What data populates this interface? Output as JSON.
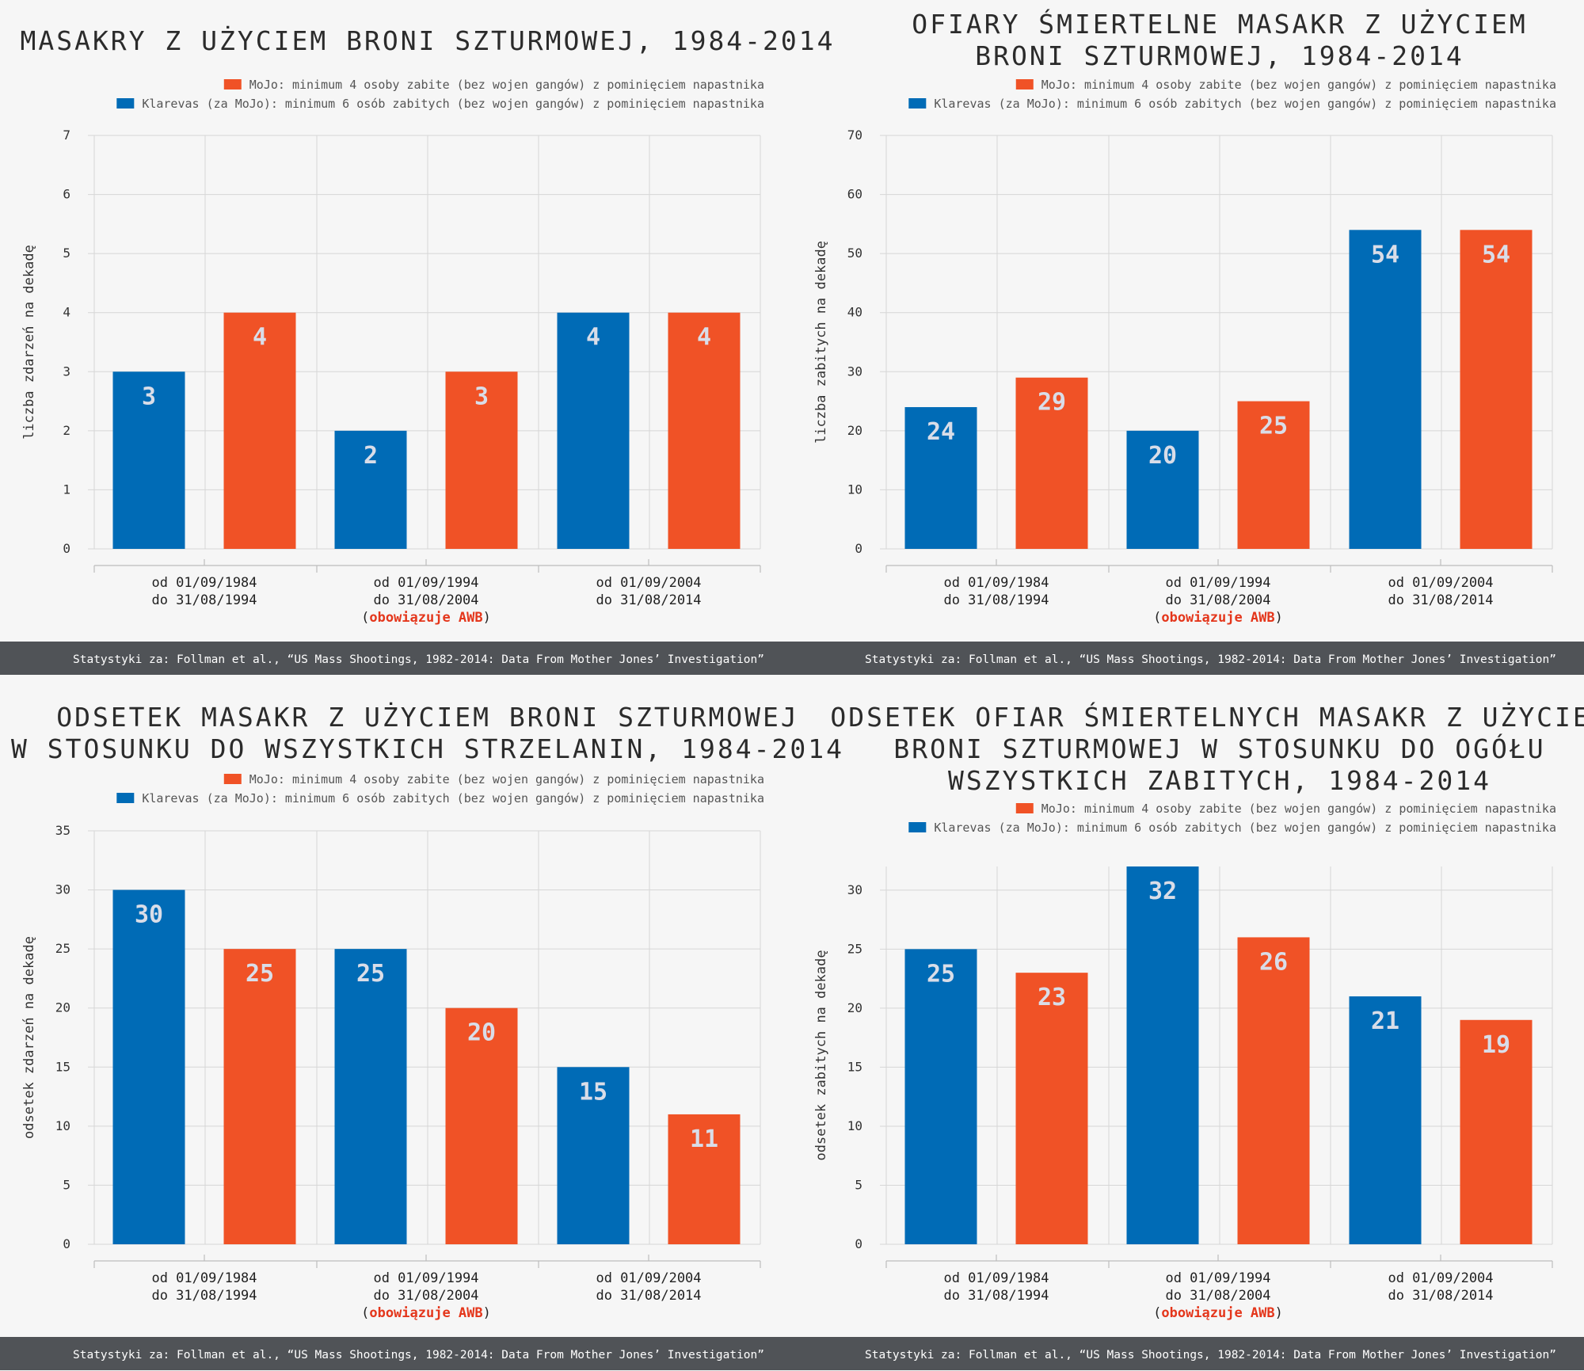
{
  "colors": {
    "blue": "#006bb6",
    "orange": "#f05226",
    "footer": "#505357",
    "awb": "#e4361b"
  },
  "legend": {
    "mojo": "MoJo: minimum 4 osoby zabite (bez wojen gangów) z pominięciem napastnika",
    "klarevas": "Klarevas (za MoJo): minimum 6 osób zabitych (bez wojen gangów) z pominięciem napastnika"
  },
  "footer": "Statystyki za: Follman et al., “US Mass Shootings, 1982-2014: Data From Mother Jones’ Investigation”",
  "categories": [
    {
      "line1": "od 01/09/1984",
      "line2": "do 31/08/1994",
      "line3": ""
    },
    {
      "line1": "od 01/09/1994",
      "line2": "do 31/08/2004",
      "line3": "obowiązuje AWB"
    },
    {
      "line1": "od 01/09/2004",
      "line2": "do 31/08/2014",
      "line3": ""
    }
  ],
  "chart_data": [
    {
      "type": "bar",
      "title": [
        "MASAKRY Z UŻYCIEM BRONI SZTURMOWEJ, 1984-2014"
      ],
      "ylabel": "liczba zdarzeń na dekadę",
      "ylim": [
        0,
        7
      ],
      "yticks": [
        0,
        1,
        2,
        3,
        4,
        5,
        6,
        7
      ],
      "series": [
        {
          "name": "Klarevas (za MoJo)",
          "color": "#006bb6",
          "values": [
            3,
            2,
            4
          ]
        },
        {
          "name": "MoJo",
          "color": "#f05226",
          "values": [
            4,
            3,
            4
          ]
        }
      ],
      "legend_position": "top-right",
      "grid": true
    },
    {
      "type": "bar",
      "title": [
        "OFIARY ŚMIERTELNE MASAKR Z UŻYCIEM",
        "BRONI SZTURMOWEJ, 1984-2014"
      ],
      "ylabel": "liczba zabitych na dekadę",
      "ylim": [
        0,
        70
      ],
      "yticks": [
        0,
        10,
        20,
        30,
        40,
        50,
        60,
        70
      ],
      "series": [
        {
          "name": "Klarevas (za MoJo)",
          "color": "#006bb6",
          "values": [
            24,
            20,
            54
          ]
        },
        {
          "name": "MoJo",
          "color": "#f05226",
          "values": [
            29,
            25,
            54
          ]
        }
      ],
      "legend_position": "top-right",
      "grid": true
    },
    {
      "type": "bar",
      "title": [
        "ODSETEK MASAKR Z UŻYCIEM BRONI SZTURMOWEJ",
        "W STOSUNKU DO WSZYSTKICH STRZELANIN, 1984-2014"
      ],
      "ylabel": "odsetek zdarzeń na dekadę",
      "ylim": [
        0,
        35
      ],
      "yticks": [
        0,
        5,
        10,
        15,
        20,
        25,
        30,
        35
      ],
      "series": [
        {
          "name": "Klarevas (za MoJo)",
          "color": "#006bb6",
          "values": [
            30,
            25,
            15
          ]
        },
        {
          "name": "MoJo",
          "color": "#f05226",
          "values": [
            25,
            20,
            11
          ]
        }
      ],
      "legend_position": "top-right",
      "grid": true
    },
    {
      "type": "bar",
      "title": [
        "ODSETEK OFIAR ŚMIERTELNYCH MASAKR Z UŻYCIEM",
        "BRONI SZTURMOWEJ W STOSUNKU DO OGÓŁU",
        "WSZYSTKICH ZABITYCH, 1984-2014"
      ],
      "ylabel": "odsetek zabitych na dekadę",
      "ylim": [
        0,
        32
      ],
      "yticks": [
        0,
        5,
        10,
        15,
        20,
        25,
        30
      ],
      "series": [
        {
          "name": "Klarevas (za MoJo)",
          "color": "#006bb6",
          "values": [
            25,
            32,
            21
          ]
        },
        {
          "name": "MoJo",
          "color": "#f05226",
          "values": [
            23,
            26,
            19
          ]
        }
      ],
      "legend_position": "top-right",
      "grid": true
    }
  ]
}
